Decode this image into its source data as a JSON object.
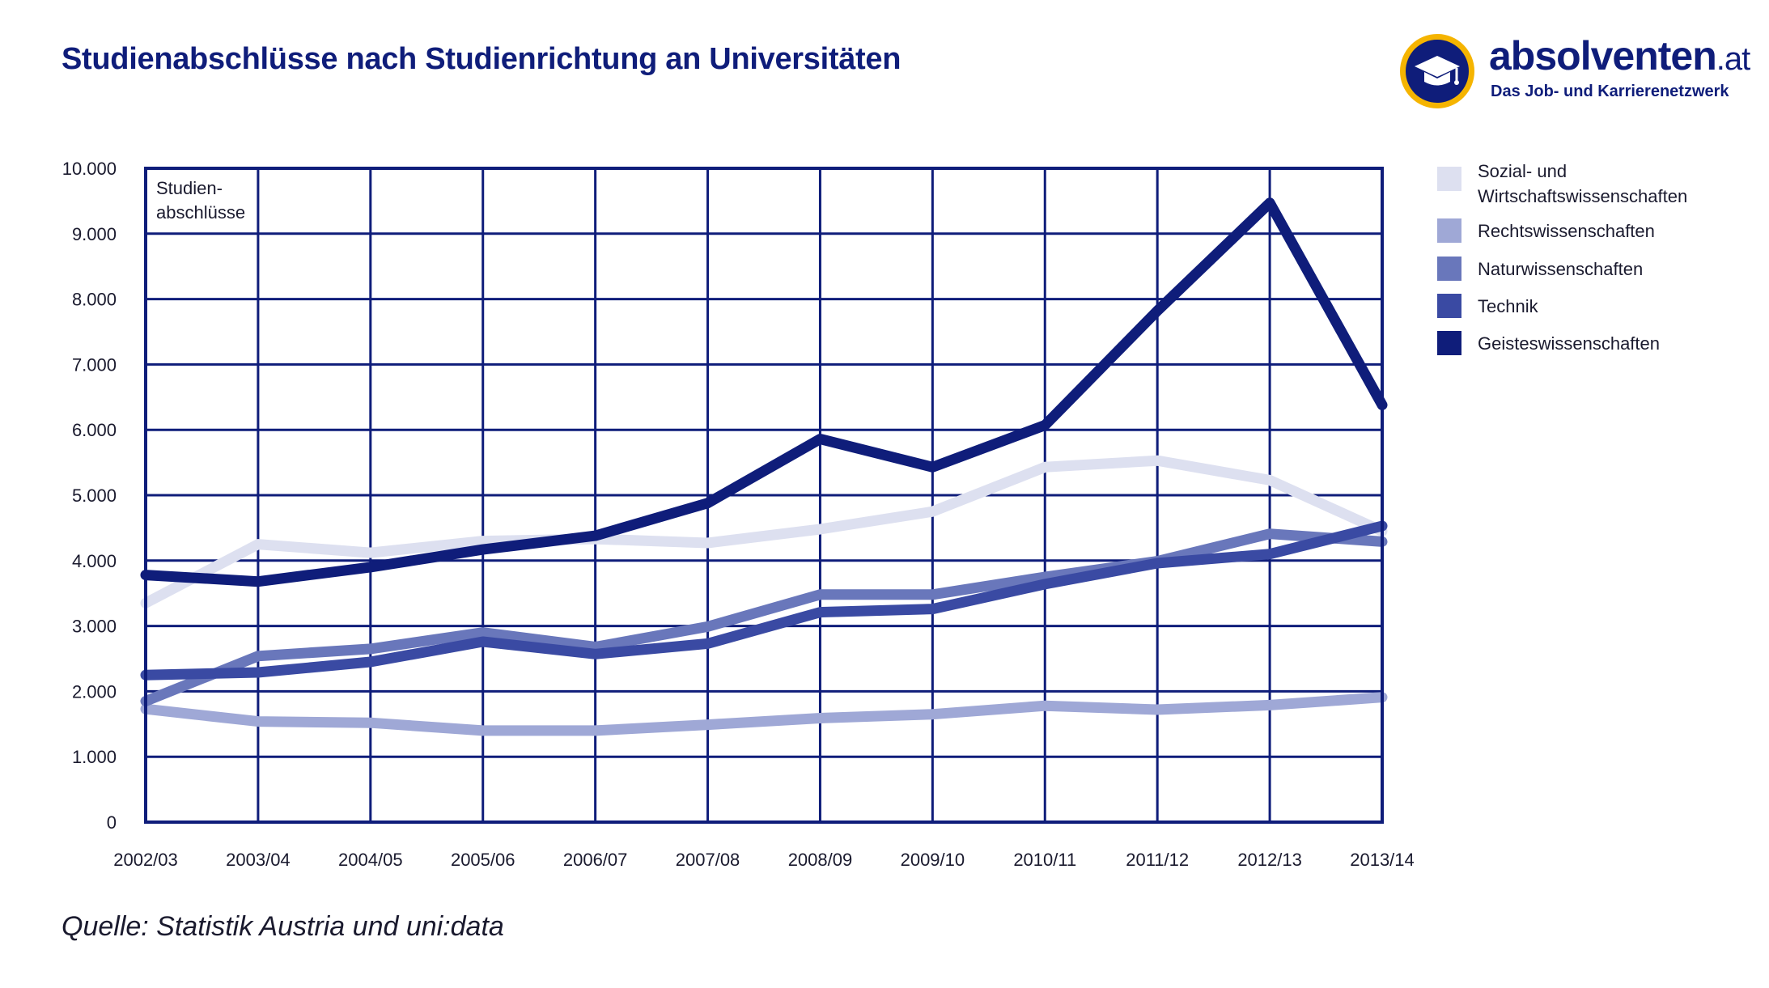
{
  "title": "Studienabschlüsse nach Studienrichtung an Universitäten",
  "logo": {
    "brand": "absolventen",
    "tld": ".at",
    "tagline": "Das Job- und Karrierenetzwerk",
    "icon": "graduation-cap-icon",
    "ring_color": "#f5b400",
    "circle_color": "#0f1d7a"
  },
  "source": "Quelle: Statistik Austria und uni:data",
  "colors": {
    "grid": "#0f1d7a",
    "text": "#1a1a2e"
  },
  "chart_data": {
    "type": "line",
    "y_axis_title": [
      "Studien-",
      "abschlüsse"
    ],
    "ylim": [
      0,
      10000
    ],
    "y_ticks": [
      0,
      1000,
      2000,
      3000,
      4000,
      5000,
      6000,
      7000,
      8000,
      9000,
      10000
    ],
    "y_tick_labels": [
      "0",
      "1.000",
      "2.000",
      "3.000",
      "4.000",
      "5.000",
      "6.000",
      "7.000",
      "8.000",
      "9.000",
      "10.000"
    ],
    "categories": [
      "2002/03",
      "2003/04",
      "2004/05",
      "2005/06",
      "2006/07",
      "2007/08",
      "2008/09",
      "2009/10",
      "2010/11",
      "2011/12",
      "2012/13",
      "2013/14"
    ],
    "grid": true,
    "legend_position": "right",
    "series": [
      {
        "name": "Sozial- und Wirtschaftswissenschaften",
        "label_lines": [
          "Sozial- und",
          "Wirtschaftswissenschaften"
        ],
        "color": "#dde0f0",
        "values": [
          3350,
          4250,
          4120,
          4300,
          4330,
          4270,
          4480,
          4750,
          5430,
          5530,
          5230,
          4450
        ]
      },
      {
        "name": "Rechtswissenschaften",
        "label_lines": [
          "Rechtswissenschaften"
        ],
        "color": "#9fa8d6",
        "values": [
          1730,
          1540,
          1520,
          1400,
          1400,
          1490,
          1590,
          1650,
          1780,
          1720,
          1790,
          1910
        ]
      },
      {
        "name": "Naturwissenschaften",
        "label_lines": [
          "Naturwissenschaften"
        ],
        "color": "#6977bb",
        "values": [
          1850,
          2540,
          2650,
          2900,
          2680,
          2990,
          3480,
          3480,
          3750,
          3990,
          4410,
          4290
        ]
      },
      {
        "name": "Technik",
        "label_lines": [
          "Technik"
        ],
        "color": "#3a4aa3",
        "values": [
          2250,
          2290,
          2450,
          2760,
          2570,
          2730,
          3210,
          3260,
          3640,
          3960,
          4100,
          4530
        ]
      },
      {
        "name": "Geisteswissenschaften",
        "label_lines": [
          "Geisteswissenschaften"
        ],
        "color": "#0f1d7a",
        "values": [
          3780,
          3680,
          3900,
          4170,
          4380,
          4880,
          5860,
          5430,
          6070,
          7820,
          9470,
          6380
        ]
      }
    ]
  }
}
